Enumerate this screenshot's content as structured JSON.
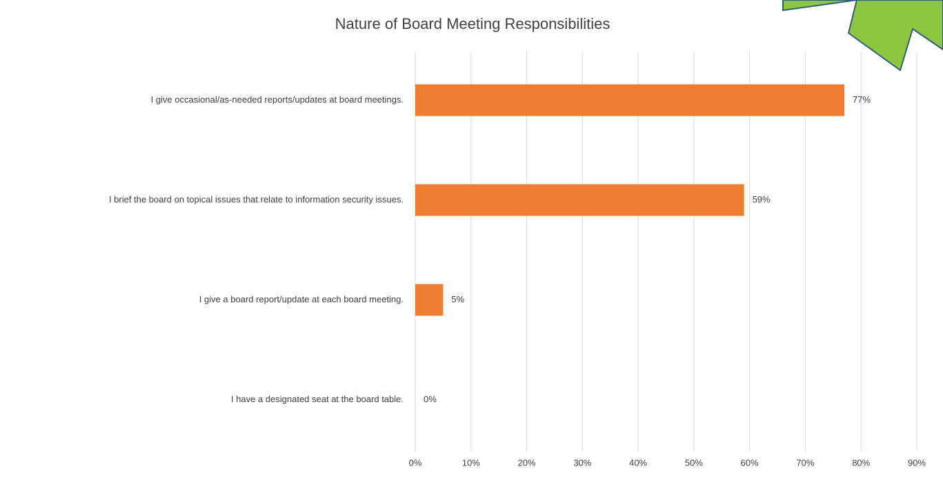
{
  "chart_data": {
    "type": "bar",
    "orientation": "horizontal",
    "title": "Nature of  Board Meeting Responsibilities",
    "categories": [
      "I give occasional/as-needed reports/updates at board meetings.",
      "I brief the board on topical issues that relate to information security issues.",
      "I give a board report/update at each board meeting.",
      "I have a designated seat at the board table."
    ],
    "values": [
      77,
      59,
      5,
      0
    ],
    "value_labels": [
      "77%",
      "59%",
      "5%",
      "0%"
    ],
    "color": "#ed7d31",
    "xlim": [
      0,
      90
    ],
    "xticks": [
      {
        "value": 0,
        "label": "0%"
      },
      {
        "value": 10,
        "label": "10%"
      },
      {
        "value": 20,
        "label": "20%"
      },
      {
        "value": 30,
        "label": "30%"
      },
      {
        "value": 40,
        "label": "40%"
      },
      {
        "value": 50,
        "label": "50%"
      },
      {
        "value": 60,
        "label": "60%"
      },
      {
        "value": 70,
        "label": "70%"
      },
      {
        "value": 80,
        "label": "80%"
      },
      {
        "value": 90,
        "label": "90%"
      }
    ],
    "grid": true
  }
}
